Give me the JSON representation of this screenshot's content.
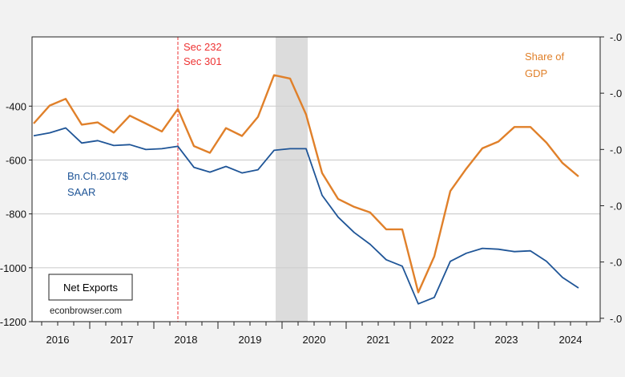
{
  "chart_data": {
    "type": "line",
    "title": "Net Exports",
    "source": "econbrowser.com",
    "x_quarters": [
      "2016Q1",
      "2016Q2",
      "2016Q3",
      "2016Q4",
      "2017Q1",
      "2017Q2",
      "2017Q3",
      "2017Q4",
      "2018Q1",
      "2018Q2",
      "2018Q3",
      "2018Q4",
      "2019Q1",
      "2019Q2",
      "2019Q3",
      "2019Q4",
      "2020Q1",
      "2020Q2",
      "2020Q3",
      "2020Q4",
      "2021Q1",
      "2021Q2",
      "2021Q3",
      "2021Q4",
      "2022Q1",
      "2022Q2",
      "2022Q3",
      "2022Q4",
      "2023Q1",
      "2023Q2",
      "2023Q3",
      "2023Q4",
      "2024Q1",
      "2024Q2",
      "2024Q3"
    ],
    "x_tick_labels": [
      "2016",
      "2017",
      "2018",
      "2019",
      "2020",
      "2021",
      "2022",
      "2023",
      "2024"
    ],
    "left_axis": {
      "ylim": [
        -1200,
        -143
      ],
      "ticks": [
        -400,
        -600,
        -800,
        -1000,
        -1200
      ],
      "tick_labels": [
        "-400",
        "-600",
        "-800",
        "-1000",
        "-1200"
      ]
    },
    "right_axis": {
      "ylim": [
        -0.0453,
        -0.02
      ],
      "ticks": [
        -0.02,
        -0.025,
        -0.03,
        -0.035,
        -0.04,
        -0.045
      ],
      "tick_labels": [
        "-.0",
        "-.0",
        "-.0",
        "-.0",
        "-.0",
        "-.0"
      ]
    },
    "series": [
      {
        "name": "Bn.Ch.2017$ SAAR",
        "label_lines": [
          "Bn.Ch.2017$",
          "SAAR"
        ],
        "axis": "left",
        "color": "#1f5597",
        "values": [
          -510,
          -499,
          -481,
          -537,
          -528,
          -546,
          -543,
          -561,
          -558,
          -549,
          -627,
          -645,
          -624,
          -648,
          -636,
          -564,
          -558,
          -558,
          -731,
          -812,
          -869,
          -913,
          -970,
          -994,
          -1134,
          -1110,
          -976,
          -946,
          -928,
          -931,
          -940,
          -937,
          -976,
          -1036,
          -1075
        ]
      },
      {
        "name": "Share of GDP",
        "label_lines": [
          "Share of",
          "GDP"
        ],
        "axis": "right",
        "color": "#e0802a",
        "values": [
          -0.0277,
          -0.0261,
          -0.0255,
          -0.0278,
          -0.0276,
          -0.0285,
          -0.027,
          -0.0277,
          -0.0284,
          -0.0264,
          -0.0297,
          -0.0303,
          -0.0281,
          -0.0288,
          -0.0271,
          -0.0234,
          -0.0237,
          -0.0269,
          -0.0321,
          -0.0344,
          -0.0351,
          -0.0356,
          -0.0371,
          -0.0371,
          -0.0427,
          -0.0395,
          -0.0337,
          -0.0317,
          -0.0299,
          -0.0293,
          -0.028,
          -0.028,
          -0.0294,
          -0.0312,
          -0.0324
        ]
      }
    ],
    "recession_shading": {
      "start": "2019Q4",
      "end": "2020Q2",
      "color": "#dcdcdc"
    },
    "annotation_line": {
      "at": "2018Q2",
      "label_lines": [
        "Sec 232",
        "Sec 301"
      ],
      "color": "#ee3333"
    },
    "grid": true
  }
}
